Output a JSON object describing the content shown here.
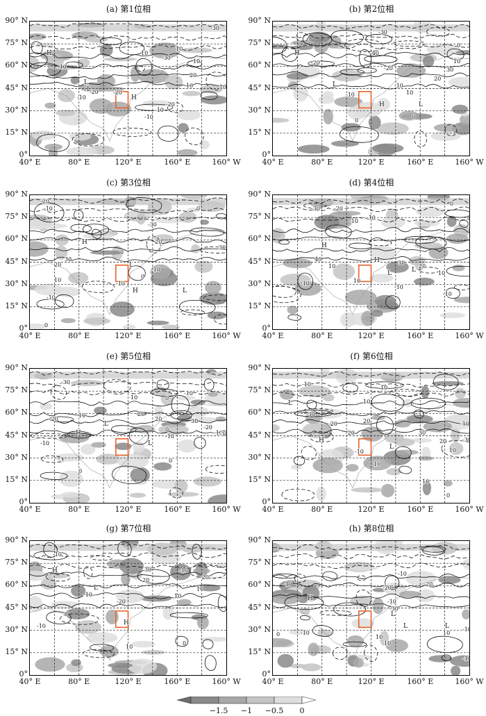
{
  "figure": {
    "panels": [
      {
        "title": "(a) 第1位相",
        "box_lon_range": [
          110,
          120
        ],
        "box_lat_range": [
          32,
          43
        ],
        "labels": [
          "H",
          "H",
          "L",
          "L",
          "-30",
          "10",
          "-10",
          "-20",
          "10",
          "-30",
          "10",
          "20",
          "-20",
          "-10",
          "-10",
          "10",
          "-20",
          "10",
          "-10"
        ]
      },
      {
        "title": "(b) 第2位相",
        "box_lon_range": [
          110,
          120
        ],
        "box_lat_range": [
          32,
          43
        ],
        "labels": [
          "H",
          "H",
          "L",
          "L",
          "-30",
          "-40",
          "0",
          "10",
          "-20",
          "-10",
          "-20",
          "20",
          "30",
          "10",
          "-10",
          "0",
          "0"
        ]
      },
      {
        "title": "(c) 第3位相",
        "box_lon_range": [
          110,
          120
        ],
        "box_lat_range": [
          32,
          43
        ],
        "labels": [
          "H",
          "L",
          "H",
          "L",
          "-20",
          "-10",
          "0",
          "-30",
          "20",
          "30",
          "20",
          "10",
          "0",
          "-10",
          "-10",
          "30",
          "-10",
          "0",
          "0"
        ]
      },
      {
        "title": "(d) 第4位相",
        "box_lon_range": [
          110,
          120
        ],
        "box_lat_range": [
          32,
          43
        ],
        "labels": [
          "H",
          "H",
          "L",
          "L",
          "-30",
          "-20",
          "-10",
          "-10",
          "0",
          "40",
          "10",
          "-10",
          "30",
          "20",
          "10",
          "-10",
          "-10",
          "10"
        ]
      },
      {
        "title": "(e) 第5位相",
        "box_lon_range": [
          110,
          120
        ],
        "box_lat_range": [
          32,
          43
        ],
        "labels": [
          "H",
          "L",
          "L",
          "-30",
          "-20",
          "10",
          "0",
          "-10",
          "10",
          "0",
          "20",
          "20",
          "-10",
          "30",
          "-20",
          "-10",
          "-30",
          "-10",
          "0",
          "0"
        ]
      },
      {
        "title": "(f) 第6位相",
        "box_lon_range": [
          110,
          120
        ],
        "box_lat_range": [
          32,
          43
        ],
        "labels": [
          "H",
          "L",
          "L",
          "-10",
          "10",
          "10",
          "-30",
          "-20",
          "-20",
          "20",
          "30",
          "20",
          "-10",
          "-30",
          "10",
          "-10",
          "10",
          "10",
          "0"
        ]
      },
      {
        "title": "(g) 第7位相",
        "box_lon_range": [
          110,
          120
        ],
        "box_lat_range": [
          32,
          43
        ],
        "labels": [
          "H",
          "H",
          "L",
          "-10",
          "30",
          "-10",
          "20",
          "-20",
          "-10",
          "10",
          "-20",
          "10",
          "-10",
          "0",
          "10",
          "0"
        ]
      },
      {
        "title": "(h) 第8位相",
        "box_lon_range": [
          110,
          120
        ],
        "box_lat_range": [
          32,
          43
        ],
        "labels": [
          "H",
          "L",
          "L",
          "L",
          "-10",
          "20",
          "-10",
          "-20",
          "-30",
          "-10",
          "-10",
          "10",
          "10",
          "-10",
          "0",
          "-10",
          "10"
        ]
      }
    ],
    "y_ticks": [
      "90° N",
      "75° N",
      "60° N",
      "45° N",
      "30° N",
      "15° N",
      "0°"
    ],
    "x_ticks": [
      "40° E",
      "80° E",
      "120° E",
      "160° E",
      "160° W"
    ],
    "colorbar": {
      "ticks": [
        "−1.5",
        "−1",
        "−0.5",
        "0"
      ],
      "shades": [
        "#8a8a8a",
        "#a8a8a8",
        "#c4c4c4",
        "#dedede"
      ]
    },
    "box_color": "#e8632b"
  }
}
